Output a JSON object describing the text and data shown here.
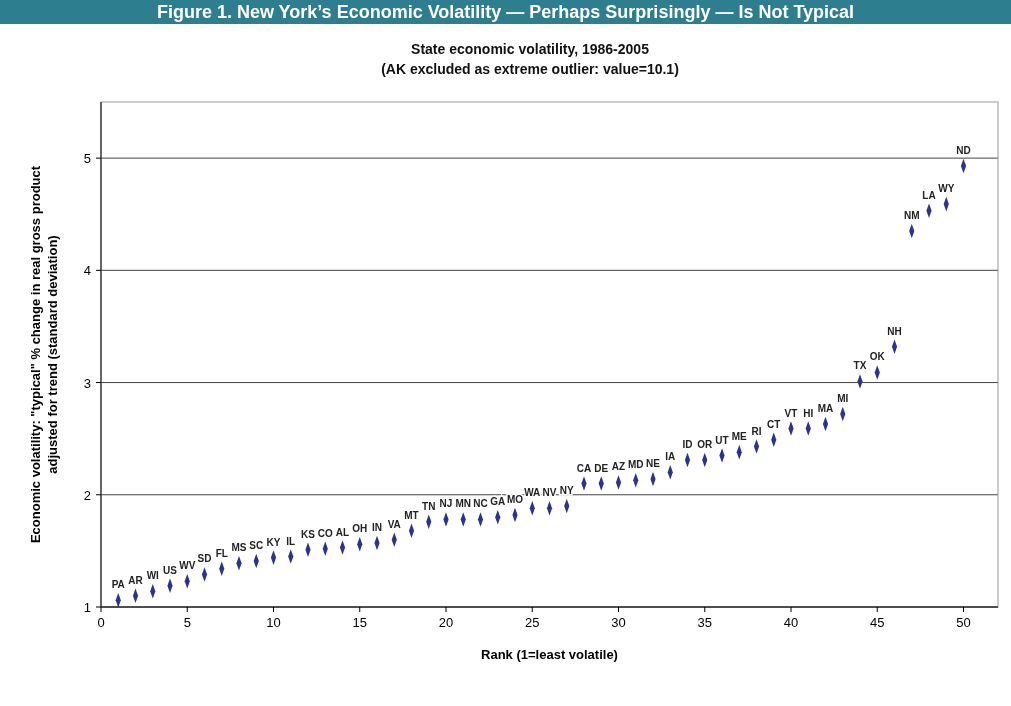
{
  "chart_data": {
    "type": "scatter",
    "title": "Figure 1. New York’s Economic Volatility — Perhaps Surprisingly — Is Not Typical",
    "subtitle": "State economic volatility, 1986-2005\n(AK excluded as extreme outlier: value=10.1)",
    "xlabel": "Rank (1=least volatile)",
    "ylabel": "Economic volatility: \"typical\" % change in real gross product\nadjusted for trend (standard deviation)",
    "x": [
      1,
      2,
      3,
      4,
      5,
      6,
      7,
      8,
      9,
      10,
      11,
      12,
      13,
      14,
      15,
      16,
      17,
      18,
      19,
      20,
      21,
      22,
      23,
      24,
      25,
      26,
      27,
      28,
      29,
      30,
      31,
      32,
      33,
      34,
      35,
      36,
      37,
      38,
      39,
      40,
      41,
      42,
      43,
      44,
      45,
      46,
      47,
      48,
      49,
      50
    ],
    "series": [
      {
        "color": "#2e3192",
        "values": [
          1.06,
          1.1,
          1.14,
          1.19,
          1.23,
          1.29,
          1.34,
          1.39,
          1.41,
          1.44,
          1.45,
          1.51,
          1.52,
          1.53,
          1.56,
          1.57,
          1.6,
          1.68,
          1.76,
          1.78,
          1.78,
          1.78,
          1.8,
          1.82,
          1.88,
          1.88,
          1.9,
          2.1,
          2.1,
          2.11,
          2.13,
          2.14,
          2.2,
          2.31,
          2.31,
          2.35,
          2.38,
          2.43,
          2.49,
          2.59,
          2.59,
          2.63,
          2.72,
          3.01,
          3.09,
          3.32,
          4.35,
          4.53,
          4.59,
          4.93
        ]
      }
    ],
    "annotations": [
      {
        "text": "PA",
        "x": 1,
        "y": 1.06
      },
      {
        "text": "AR",
        "x": 2,
        "y": 1.1
      },
      {
        "text": "WI",
        "x": 3,
        "y": 1.14
      },
      {
        "text": "US",
        "x": 4,
        "y": 1.19
      },
      {
        "text": "WV",
        "x": 5,
        "y": 1.23
      },
      {
        "text": "SD",
        "x": 6,
        "y": 1.29
      },
      {
        "text": "FL",
        "x": 7,
        "y": 1.34
      },
      {
        "text": "MS",
        "x": 8,
        "y": 1.39
      },
      {
        "text": "SC",
        "x": 9,
        "y": 1.41
      },
      {
        "text": "KY",
        "x": 10,
        "y": 1.44
      },
      {
        "text": "IL",
        "x": 11,
        "y": 1.45
      },
      {
        "text": "KS",
        "x": 12,
        "y": 1.51
      },
      {
        "text": "CO",
        "x": 13,
        "y": 1.52
      },
      {
        "text": "AL",
        "x": 14,
        "y": 1.53
      },
      {
        "text": "OH",
        "x": 15,
        "y": 1.56
      },
      {
        "text": "IN",
        "x": 16,
        "y": 1.57
      },
      {
        "text": "VA",
        "x": 17,
        "y": 1.6
      },
      {
        "text": "MT",
        "x": 18,
        "y": 1.68
      },
      {
        "text": "TN",
        "x": 19,
        "y": 1.76
      },
      {
        "text": "NJ",
        "x": 20,
        "y": 1.78
      },
      {
        "text": "MN",
        "x": 21,
        "y": 1.78
      },
      {
        "text": "NC",
        "x": 22,
        "y": 1.78
      },
      {
        "text": "GA",
        "x": 23,
        "y": 1.8
      },
      {
        "text": "MO",
        "x": 24,
        "y": 1.82
      },
      {
        "text": "WA",
        "x": 25,
        "y": 1.88
      },
      {
        "text": "NV",
        "x": 26,
        "y": 1.88
      },
      {
        "text": "NY",
        "x": 27,
        "y": 1.9
      },
      {
        "text": "CA",
        "x": 28,
        "y": 2.1
      },
      {
        "text": "DE",
        "x": 29,
        "y": 2.1
      },
      {
        "text": "AZ",
        "x": 30,
        "y": 2.11
      },
      {
        "text": "MD",
        "x": 31,
        "y": 2.13
      },
      {
        "text": "NE",
        "x": 32,
        "y": 2.14
      },
      {
        "text": "IA",
        "x": 33,
        "y": 2.2
      },
      {
        "text": "ID",
        "x": 34,
        "y": 2.31
      },
      {
        "text": "OR",
        "x": 35,
        "y": 2.31
      },
      {
        "text": "UT",
        "x": 36,
        "y": 2.35
      },
      {
        "text": "ME",
        "x": 37,
        "y": 2.38
      },
      {
        "text": "RI",
        "x": 38,
        "y": 2.43
      },
      {
        "text": "CT",
        "x": 39,
        "y": 2.49
      },
      {
        "text": "VT",
        "x": 40,
        "y": 2.59
      },
      {
        "text": "HI",
        "x": 41,
        "y": 2.59
      },
      {
        "text": "MA",
        "x": 42,
        "y": 2.63
      },
      {
        "text": "MI",
        "x": 43,
        "y": 2.72
      },
      {
        "text": "TX",
        "x": 44,
        "y": 3.01
      },
      {
        "text": "OK",
        "x": 45,
        "y": 3.09
      },
      {
        "text": "NH",
        "x": 46,
        "y": 3.32
      },
      {
        "text": "NM",
        "x": 47,
        "y": 4.35
      },
      {
        "text": "LA",
        "x": 48,
        "y": 4.53
      },
      {
        "text": "WY",
        "x": 49,
        "y": 4.59
      },
      {
        "text": "ND",
        "x": 50,
        "y": 4.93
      }
    ],
    "xlim": [
      0,
      52
    ],
    "xticks": [
      0,
      5,
      10,
      15,
      20,
      25,
      30,
      35,
      40,
      45,
      50
    ],
    "ylim": [
      1,
      5.5
    ],
    "yticks": [
      1,
      2,
      3,
      4,
      5
    ],
    "grid": "y",
    "marker": "diamond"
  }
}
